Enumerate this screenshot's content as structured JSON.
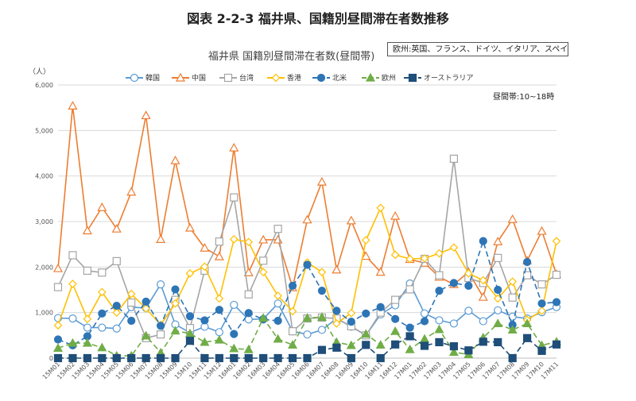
{
  "header": {
    "main_title": "図表 2-2-3 福井県、国籍別昼間滞在者数推移",
    "chart_title": "福井県 国籍別昼間滞在者数(昼間帯)",
    "note_box": "欧州:英国、フランス、ドイツ、イタリア、スペイン",
    "time_note": "昼間帯:10~18時",
    "unit": "（人）"
  },
  "chart_data": {
    "type": "line",
    "title": "福井県 国籍別昼間滞在者数(昼間帯)",
    "ylabel": "（人）",
    "ylim": [
      0,
      6000
    ],
    "grid": true,
    "legend_position": "top",
    "yticks": [
      "0",
      "1,000",
      "2,000",
      "3,000",
      "4,000",
      "5,000",
      "6,000"
    ],
    "x": [
      "15M01",
      "15M02",
      "15M03",
      "15M04",
      "15M05",
      "15M06",
      "15M07",
      "15M08",
      "15M09",
      "15M10",
      "15M11",
      "15M12",
      "16M01",
      "16M02",
      "16M03",
      "16M04",
      "16M05",
      "16M06",
      "16M07",
      "16M08",
      "16M09",
      "16M10",
      "16M11",
      "16M12",
      "17M01",
      "17M02",
      "17M03",
      "17M04",
      "17M05",
      "17M06",
      "17M07",
      "17M08",
      "17M09",
      "17M10",
      "17M11"
    ],
    "series": [
      {
        "name": "韓国",
        "color": "#5b9bd5",
        "marker": "circle-open",
        "dash": "solid",
        "values": [
          880,
          870,
          670,
          670,
          650,
          1120,
          1100,
          1620,
          740,
          560,
          690,
          570,
          1170,
          850,
          860,
          1200,
          590,
          520,
          620,
          870,
          690,
          500,
          960,
          1160,
          1640,
          980,
          830,
          760,
          1040,
          810,
          1050,
          910,
          870,
          1010,
          1120
        ]
      },
      {
        "name": "中国",
        "color": "#ed7d31",
        "marker": "triangle-open",
        "dash": "solid",
        "values": [
          1970,
          5540,
          2800,
          3310,
          2840,
          3650,
          5330,
          2610,
          4340,
          2860,
          2420,
          2230,
          4620,
          1880,
          2600,
          2600,
          1550,
          3040,
          3870,
          1940,
          3020,
          2240,
          1890,
          3120,
          2170,
          2090,
          1780,
          1620,
          1890,
          1340,
          2560,
          3050,
          2140,
          2790,
          1840
        ]
      },
      {
        "name": "台湾",
        "color": "#a5a5a5",
        "marker": "square-open",
        "dash": "solid",
        "values": [
          1560,
          2260,
          1920,
          1880,
          2130,
          1220,
          440,
          520,
          1280,
          660,
          1920,
          2560,
          3530,
          1400,
          2140,
          2840,
          590,
          870,
          890,
          870,
          700,
          500,
          1000,
          1280,
          1510,
          2180,
          1820,
          4380,
          1760,
          1650,
          2200,
          1330,
          1820,
          1620,
          1830
        ]
      },
      {
        "name": "香港",
        "color": "#ffc000",
        "marker": "diamond-open",
        "dash": "solid",
        "values": [
          720,
          1630,
          860,
          1450,
          1000,
          1410,
          1090,
          730,
          1200,
          1860,
          2010,
          1310,
          2610,
          2550,
          1890,
          1370,
          1030,
          2100,
          1890,
          760,
          990,
          2590,
          3300,
          2270,
          2180,
          2190,
          2300,
          2430,
          1860,
          1710,
          1310,
          1680,
          840,
          1040,
          2570
        ]
      },
      {
        "name": "北米",
        "color": "#2e75b6",
        "marker": "circle-filled",
        "dash": "dashed",
        "values": [
          410,
          280,
          480,
          980,
          1150,
          820,
          1240,
          710,
          1510,
          920,
          830,
          1060,
          530,
          990,
          850,
          820,
          1590,
          2050,
          1480,
          1040,
          800,
          980,
          1120,
          860,
          670,
          810,
          1480,
          1650,
          1590,
          2570,
          1500,
          730,
          2110,
          1200,
          1230
        ]
      },
      {
        "name": "欧州",
        "color": "#70ad47",
        "marker": "triangle-filled",
        "dash": "dashed",
        "values": [
          220,
          330,
          330,
          230,
          50,
          50,
          490,
          120,
          600,
          540,
          350,
          400,
          210,
          190,
          880,
          420,
          290,
          880,
          900,
          350,
          280,
          530,
          290,
          590,
          190,
          420,
          630,
          130,
          80,
          450,
          760,
          620,
          760,
          280,
          360
        ]
      },
      {
        "name": "オーストラリア",
        "color": "#1f4e79",
        "marker": "square-filled",
        "dash": "dashed",
        "values": [
          0,
          0,
          0,
          0,
          0,
          0,
          0,
          0,
          0,
          380,
          0,
          0,
          0,
          0,
          0,
          0,
          0,
          0,
          180,
          230,
          0,
          290,
          0,
          300,
          480,
          270,
          350,
          260,
          170,
          360,
          350,
          0,
          440,
          160,
          300
        ]
      }
    ]
  }
}
